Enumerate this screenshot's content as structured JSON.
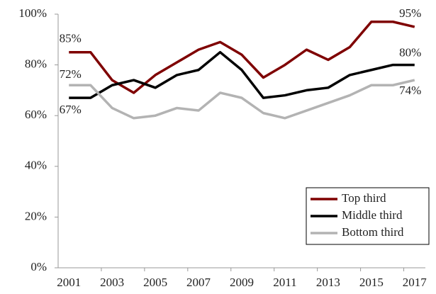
{
  "chart_data": {
    "type": "line",
    "categories": [
      "2001",
      null,
      "2003",
      null,
      "2005",
      null,
      "2007",
      null,
      "2009",
      null,
      "2011",
      null,
      "2013",
      null,
      "2015",
      null,
      "2017"
    ],
    "series": [
      {
        "name": "Top third",
        "color": "#7f0000",
        "values": [
          85,
          85,
          74,
          69,
          76,
          81,
          86,
          89,
          84,
          75,
          80,
          86,
          82,
          87,
          97,
          97,
          95
        ],
        "value_labels": [
          "85%",
          null,
          null,
          null,
          null,
          null,
          null,
          null,
          null,
          null,
          null,
          null,
          null,
          null,
          null,
          null,
          "95%"
        ]
      },
      {
        "name": "Middle third",
        "color": "#000000",
        "values": [
          67,
          67,
          72,
          74,
          71,
          76,
          78,
          85,
          78,
          67,
          68,
          70,
          71,
          76,
          78,
          80,
          80
        ],
        "value_labels": [
          "67%",
          null,
          null,
          null,
          null,
          null,
          null,
          null,
          null,
          null,
          null,
          null,
          null,
          null,
          null,
          null,
          "80%"
        ]
      },
      {
        "name": "Bottom third",
        "color": "#b3b3b3",
        "values": [
          72,
          72,
          63,
          59,
          60,
          63,
          62,
          69,
          67,
          61,
          59,
          62,
          65,
          68,
          72,
          72,
          74
        ],
        "value_labels": [
          "72%",
          null,
          null,
          null,
          null,
          null,
          null,
          null,
          null,
          null,
          null,
          null,
          null,
          null,
          null,
          null,
          "74%"
        ]
      }
    ],
    "ylim": [
      0,
      100
    ],
    "yticks": [
      {
        "value": 0,
        "label": "0%"
      },
      {
        "value": 20,
        "label": "20%"
      },
      {
        "value": 40,
        "label": "40%"
      },
      {
        "value": 60,
        "label": "60%"
      },
      {
        "value": 80,
        "label": "80%"
      },
      {
        "value": 100,
        "label": "100%"
      }
    ],
    "grid": false,
    "legend": "lower right"
  }
}
